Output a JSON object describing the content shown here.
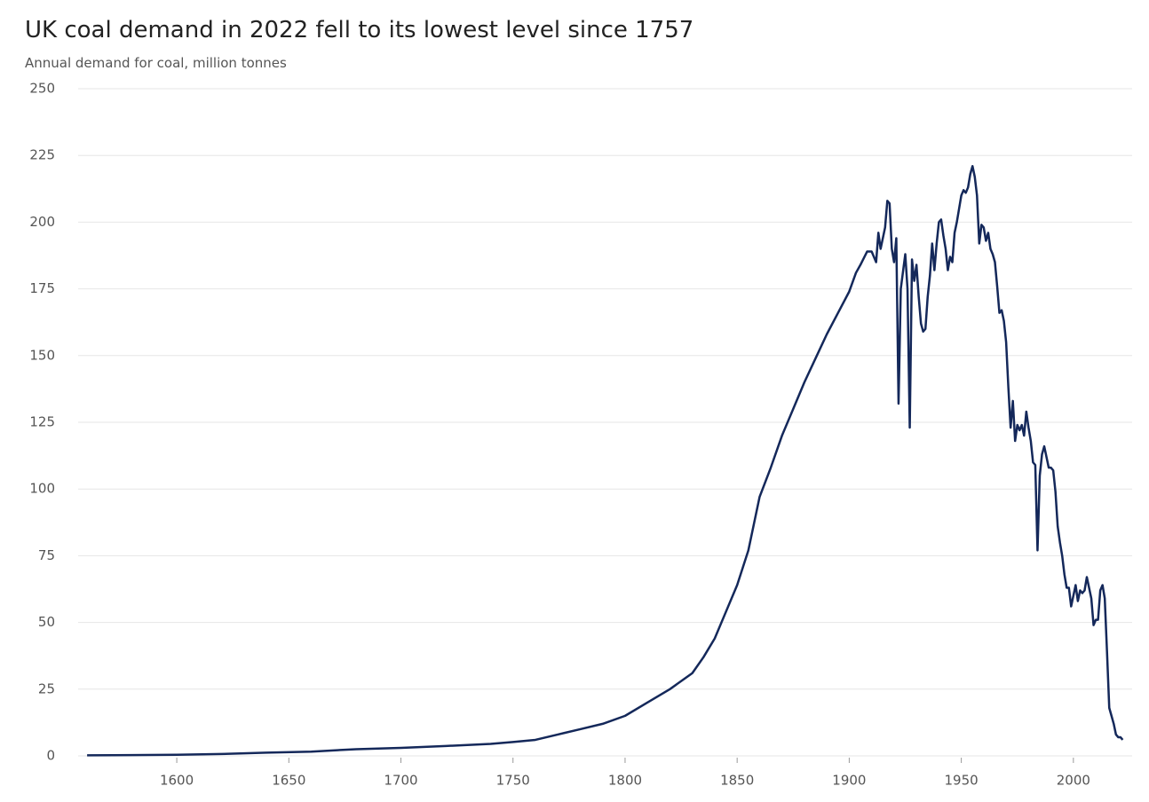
{
  "chart_data": {
    "type": "line",
    "title": "UK coal demand in 2022 fell to its lowest level since 1757",
    "subtitle": "Annual demand for coal, million tonnes",
    "color": "#14285a",
    "grid": true,
    "x": [
      1560,
      1580,
      1600,
      1620,
      1640,
      1660,
      1680,
      1700,
      1720,
      1740,
      1750,
      1760,
      1770,
      1780,
      1790,
      1800,
      1810,
      1820,
      1830,
      1835,
      1840,
      1845,
      1850,
      1855,
      1860,
      1865,
      1870,
      1875,
      1880,
      1885,
      1890,
      1895,
      1900,
      1903,
      1905,
      1908,
      1910,
      1912,
      1913,
      1914,
      1916,
      1917,
      1918,
      1919,
      1920,
      1921,
      1922,
      1923,
      1925,
      1926,
      1927,
      1928,
      1929,
      1930,
      1931,
      1932,
      1933,
      1934,
      1935,
      1936,
      1937,
      1938,
      1939,
      1940,
      1941,
      1942,
      1943,
      1944,
      1945,
      1946,
      1947,
      1948,
      1950,
      1951,
      1952,
      1953,
      1954,
      1955,
      1956,
      1957,
      1958,
      1959,
      1960,
      1961,
      1962,
      1963,
      1964,
      1965,
      1966,
      1967,
      1968,
      1969,
      1970,
      1971,
      1972,
      1973,
      1974,
      1975,
      1976,
      1977,
      1978,
      1979,
      1980,
      1981,
      1982,
      1983,
      1984,
      1985,
      1986,
      1987,
      1988,
      1989,
      1990,
      1991,
      1992,
      1993,
      1994,
      1995,
      1996,
      1997,
      1998,
      1999,
      2000,
      2001,
      2002,
      2003,
      2004,
      2005,
      2006,
      2007,
      2008,
      2009,
      2010,
      2011,
      2012,
      2013,
      2014,
      2015,
      2016,
      2017,
      2018,
      2019,
      2020,
      2021,
      2022
    ],
    "values": [
      0.2,
      0.3,
      0.4,
      0.7,
      1.2,
      1.6,
      2.5,
      3,
      3.7,
      4.5,
      5.2,
      6,
      8,
      10,
      12,
      15,
      20,
      25,
      31,
      37,
      44,
      54,
      64,
      77,
      97,
      108,
      120,
      130,
      140,
      149,
      158,
      166,
      174,
      181,
      184,
      189,
      189,
      185,
      196,
      190,
      198,
      208,
      207,
      190,
      185,
      194,
      132,
      175,
      188,
      175,
      123,
      186,
      178,
      184,
      172,
      162,
      159,
      160,
      172,
      180,
      192,
      182,
      192,
      200,
      201,
      195,
      190,
      182,
      187,
      185,
      196,
      200,
      210,
      212,
      211,
      213,
      218,
      221,
      217,
      210,
      192,
      199,
      198,
      193,
      196,
      190,
      188,
      185,
      176,
      166,
      167,
      163,
      155,
      138,
      123,
      133,
      118,
      124,
      122,
      124,
      120,
      129,
      123,
      118,
      110,
      109,
      77,
      105,
      113,
      116,
      112,
      108,
      108,
      107,
      99,
      86,
      80,
      75,
      68,
      63,
      63,
      56,
      60,
      64,
      58,
      62,
      61,
      62,
      67,
      63,
      59,
      49,
      51,
      51,
      62,
      64,
      59,
      39,
      18,
      15,
      12,
      8,
      7,
      7,
      6
    ],
    "xlim": [
      1556,
      2027
    ],
    "xticks": [
      1600,
      1650,
      1700,
      1750,
      1800,
      1850,
      1900,
      1950,
      2000
    ],
    "ylim": [
      0,
      250
    ],
    "yticks": [
      0,
      25,
      50,
      75,
      100,
      125,
      150,
      175,
      200,
      225,
      250
    ]
  }
}
